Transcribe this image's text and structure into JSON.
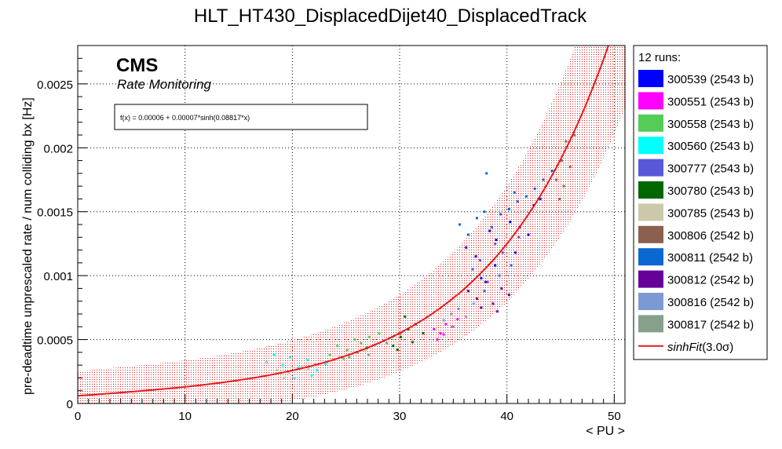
{
  "chart_data": {
    "type": "scatter",
    "title": "HLT_HT430_DisplacedDijet40_DisplacedTrack",
    "xlabel": "< PU >",
    "ylabel": "pre-deadtime unprescaled rate / num colliding bx [Hz]",
    "xlim": [
      0,
      51
    ],
    "ylim": [
      0,
      0.0028
    ],
    "x_ticks": [
      0,
      10,
      20,
      30,
      40,
      50
    ],
    "x_tick_labels": [
      "0",
      "10",
      "20",
      "30",
      "40",
      "50"
    ],
    "y_ticks": [
      0,
      0.0005,
      0.001,
      0.0015,
      0.002,
      0.0025
    ],
    "y_tick_labels": [
      "0",
      "0.0005",
      "0.001",
      "0.0015",
      "0.002",
      "0.0025"
    ],
    "grid": true,
    "legend_position": "right",
    "annotations": {
      "experiment": "CMS",
      "subtitle": "Rate Monitoring",
      "fit_formula": "f(x) = 0.00006 + 0.00007*sinh(0.08817*x)"
    },
    "fit": {
      "name": "sinhFit(3.0σ)",
      "a": 6e-05,
      "b": 7e-05,
      "c": 0.08817,
      "band": 3,
      "color": "#e41a1c"
    },
    "legend": {
      "header": "12 runs:",
      "fit_label_main": "sinhFit",
      "fit_label_paren": "(3.0σ)"
    },
    "series": [
      {
        "name": "300539 (2543 b)",
        "color": "#0000ff",
        "x": [
          36.2,
          37.1,
          38.4,
          39.0,
          40.3,
          41.2,
          42.5,
          43.1,
          37.6,
          38.9,
          40.8,
          42.0
        ],
        "y": [
          0.00122,
          0.00115,
          0.00135,
          0.00128,
          0.00142,
          0.00138,
          0.00155,
          0.0016,
          0.00098,
          0.00108,
          0.00118,
          0.00132
        ]
      },
      {
        "name": "300551 (2543 b)",
        "color": "#ff00ff",
        "x": [
          33.2,
          33.8,
          34.3,
          34.9,
          35.4,
          33.5,
          34.1
        ],
        "y": [
          0.00058,
          0.00055,
          0.00062,
          0.0006,
          0.00066,
          0.0005,
          0.00054
        ]
      },
      {
        "name": "300558 (2543 b)",
        "color": "#55cc55",
        "x": [
          23.5,
          24.2,
          25.1,
          25.8,
          26.4,
          27.2,
          28.1,
          24.8,
          26.9
        ],
        "y": [
          0.00038,
          0.00045,
          0.00042,
          0.0005,
          0.00047,
          0.00052,
          0.00055,
          0.00035,
          0.00044
        ]
      },
      {
        "name": "300560 (2543 b)",
        "color": "#00ffff",
        "x": [
          17.6,
          18.3,
          19.1,
          19.8,
          20.6,
          21.4,
          22.3,
          23.1,
          18.9,
          20.2,
          21.8
        ],
        "y": [
          0.00032,
          0.00038,
          0.0003,
          0.00036,
          0.00028,
          0.00034,
          0.00026,
          0.00031,
          0.00024,
          0.0002,
          0.00022
        ]
      },
      {
        "name": "300777 (2543 b)",
        "color": "#5858d8",
        "x": [
          36.8,
          37.5,
          38.2,
          38.9,
          39.6,
          40.4,
          41.1,
          37.9,
          39.3
        ],
        "y": [
          0.00105,
          0.00112,
          0.00095,
          0.00125,
          0.00118,
          0.00108,
          0.0013,
          0.00088,
          0.001
        ]
      },
      {
        "name": "300780 (2543 b)",
        "color": "#006600",
        "x": [
          29.4,
          30.1,
          30.8,
          31.5,
          32.2,
          30.5,
          31.2,
          29.8
        ],
        "y": [
          0.00045,
          0.00052,
          0.00058,
          0.00062,
          0.00055,
          0.00068,
          0.00048,
          0.00042
        ]
      },
      {
        "name": "300785 (2543 b)",
        "color": "#ccc8aa",
        "x": [
          17.4,
          18.6,
          19.7,
          20.9,
          22.1,
          23.3,
          24.4,
          25.6,
          26.8,
          19.2,
          21.5,
          23.8
        ],
        "y": [
          0.00022,
          0.00026,
          0.00024,
          0.00029,
          0.00031,
          0.00033,
          0.00037,
          0.00039,
          0.00041,
          0.0002,
          0.00027,
          0.00034
        ]
      },
      {
        "name": "300806 (2542 b)",
        "color": "#8b6050",
        "x": [
          44.6,
          45.1,
          45.5,
          45.9,
          46.3,
          45.3,
          44.9
        ],
        "y": [
          0.00175,
          0.0019,
          0.00205,
          0.00185,
          0.0021,
          0.0017,
          0.0016
        ]
      },
      {
        "name": "300811 (2542 b)",
        "color": "#0b68d2",
        "x": [
          35.6,
          36.4,
          37.2,
          37.9,
          38.6,
          39.4,
          40.2,
          41.0,
          41.8,
          42.6,
          43.4,
          44.2,
          38.1,
          40.7
        ],
        "y": [
          0.0014,
          0.00132,
          0.00145,
          0.0015,
          0.00138,
          0.00148,
          0.00152,
          0.00158,
          0.00162,
          0.00168,
          0.00175,
          0.00182,
          0.0018,
          0.00165
        ]
      },
      {
        "name": "300812 (2542 b)",
        "color": "#660099",
        "x": [
          36.4,
          37.2,
          38.0,
          38.7,
          39.5,
          40.2,
          37.6,
          39.1
        ],
        "y": [
          0.00088,
          0.00082,
          0.00095,
          0.00078,
          0.0009,
          0.00085,
          0.00075,
          0.00072
        ]
      },
      {
        "name": "300816 (2542 b)",
        "color": "#7b9ad4",
        "x": [
          34.1,
          34.8,
          35.5,
          36.2,
          36.9,
          35.0
        ],
        "y": [
          0.00065,
          0.0007,
          0.00074,
          0.00068,
          0.00078,
          0.0006
        ]
      },
      {
        "name": "300817 (2542 b)",
        "color": "#86a08c",
        "x": [
          25.3,
          26.1,
          26.9,
          27.7,
          28.5,
          29.3,
          30.1,
          27.1,
          28.8
        ],
        "y": [
          0.00036,
          0.0004,
          0.00043,
          0.00046,
          0.00049,
          0.00052,
          0.00055,
          0.00038,
          0.00047
        ]
      }
    ]
  }
}
